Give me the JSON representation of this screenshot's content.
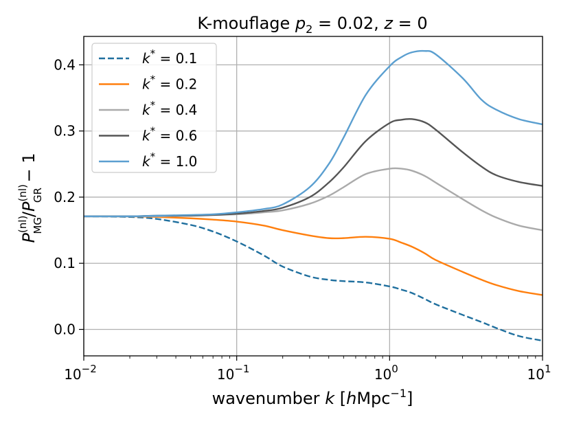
{
  "chart_data": {
    "type": "line",
    "title": "K-mouflage p₂ = 0.02, z = 0",
    "xlabel": "wavenumber k [hMpc⁻¹]",
    "ylabel": "Pₘᴳ(nl)/Pᴳᴿ(nl) − 1",
    "ylabel_parts": {
      "P": "P",
      "sub_mg": "MG",
      "sub_gr": "GR",
      "sup": "(nl)",
      "tail": " − 1"
    },
    "xscale": "log",
    "xlim": [
      0.01,
      10
    ],
    "ylim": [
      -0.04,
      0.443
    ],
    "grid": true,
    "legend_location": "upper-left",
    "x_ticks": [
      {
        "value": 0.01,
        "base": "10",
        "exp": "−2"
      },
      {
        "value": 0.1,
        "base": "10",
        "exp": "−1"
      },
      {
        "value": 1,
        "base": "10",
        "exp": "0"
      },
      {
        "value": 10,
        "base": "10",
        "exp": "1"
      }
    ],
    "y_ticks": [
      {
        "value": 0.0,
        "label": "0.0"
      },
      {
        "value": 0.1,
        "label": "0.1"
      },
      {
        "value": 0.2,
        "label": "0.2"
      },
      {
        "value": 0.3,
        "label": "0.3"
      },
      {
        "value": 0.4,
        "label": "0.4"
      }
    ],
    "x": [
      0.01,
      0.02,
      0.03,
      0.05,
      0.07,
      0.1,
      0.15,
      0.2,
      0.3,
      0.4,
      0.5,
      0.7,
      1.0,
      1.2,
      1.4,
      1.7,
      2.0,
      3.0,
      4.0,
      5.0,
      7.0,
      10.0
    ],
    "series": [
      {
        "name": "k* = 0.1",
        "label_sym": "k",
        "label_val": " = 0.1",
        "color": "#1f6f9e",
        "dash": "dashed",
        "values": [
          0.171,
          0.17,
          0.167,
          0.158,
          0.148,
          0.133,
          0.112,
          0.095,
          0.08,
          0.075,
          0.073,
          0.071,
          0.065,
          0.06,
          0.055,
          0.046,
          0.038,
          0.022,
          0.011,
          0.002,
          -0.01,
          -0.017
        ]
      },
      {
        "name": "k* = 0.2",
        "label_sym": "k",
        "label_val": " = 0.2",
        "color": "#ff7f0e",
        "dash": "solid",
        "values": [
          0.171,
          0.171,
          0.17,
          0.168,
          0.166,
          0.163,
          0.157,
          0.15,
          0.142,
          0.138,
          0.138,
          0.14,
          0.137,
          0.131,
          0.125,
          0.115,
          0.105,
          0.087,
          0.075,
          0.067,
          0.058,
          0.052
        ]
      },
      {
        "name": "k* = 0.4",
        "label_sym": "k",
        "label_val": " = 0.4",
        "color": "#aaaaaa",
        "dash": "solid",
        "values": [
          0.171,
          0.171,
          0.171,
          0.172,
          0.173,
          0.174,
          0.177,
          0.18,
          0.19,
          0.202,
          0.215,
          0.235,
          0.243,
          0.243,
          0.24,
          0.232,
          0.222,
          0.197,
          0.18,
          0.169,
          0.157,
          0.15
        ]
      },
      {
        "name": "k* = 0.6",
        "label_sym": "k",
        "label_val": " = 0.6",
        "color": "#555555",
        "dash": "solid",
        "values": [
          0.171,
          0.171,
          0.172,
          0.172,
          0.173,
          0.175,
          0.179,
          0.184,
          0.2,
          0.222,
          0.245,
          0.285,
          0.312,
          0.317,
          0.318,
          0.313,
          0.302,
          0.268,
          0.246,
          0.233,
          0.223,
          0.217
        ]
      },
      {
        "name": "k* = 1.0",
        "label_sym": "k",
        "label_val": " = 1.0",
        "color": "#5b9fd0",
        "dash": "solid",
        "values": [
          0.171,
          0.171,
          0.172,
          0.173,
          0.174,
          0.177,
          0.182,
          0.189,
          0.215,
          0.25,
          0.29,
          0.355,
          0.398,
          0.412,
          0.419,
          0.421,
          0.416,
          0.38,
          0.347,
          0.332,
          0.318,
          0.31
        ]
      }
    ]
  }
}
